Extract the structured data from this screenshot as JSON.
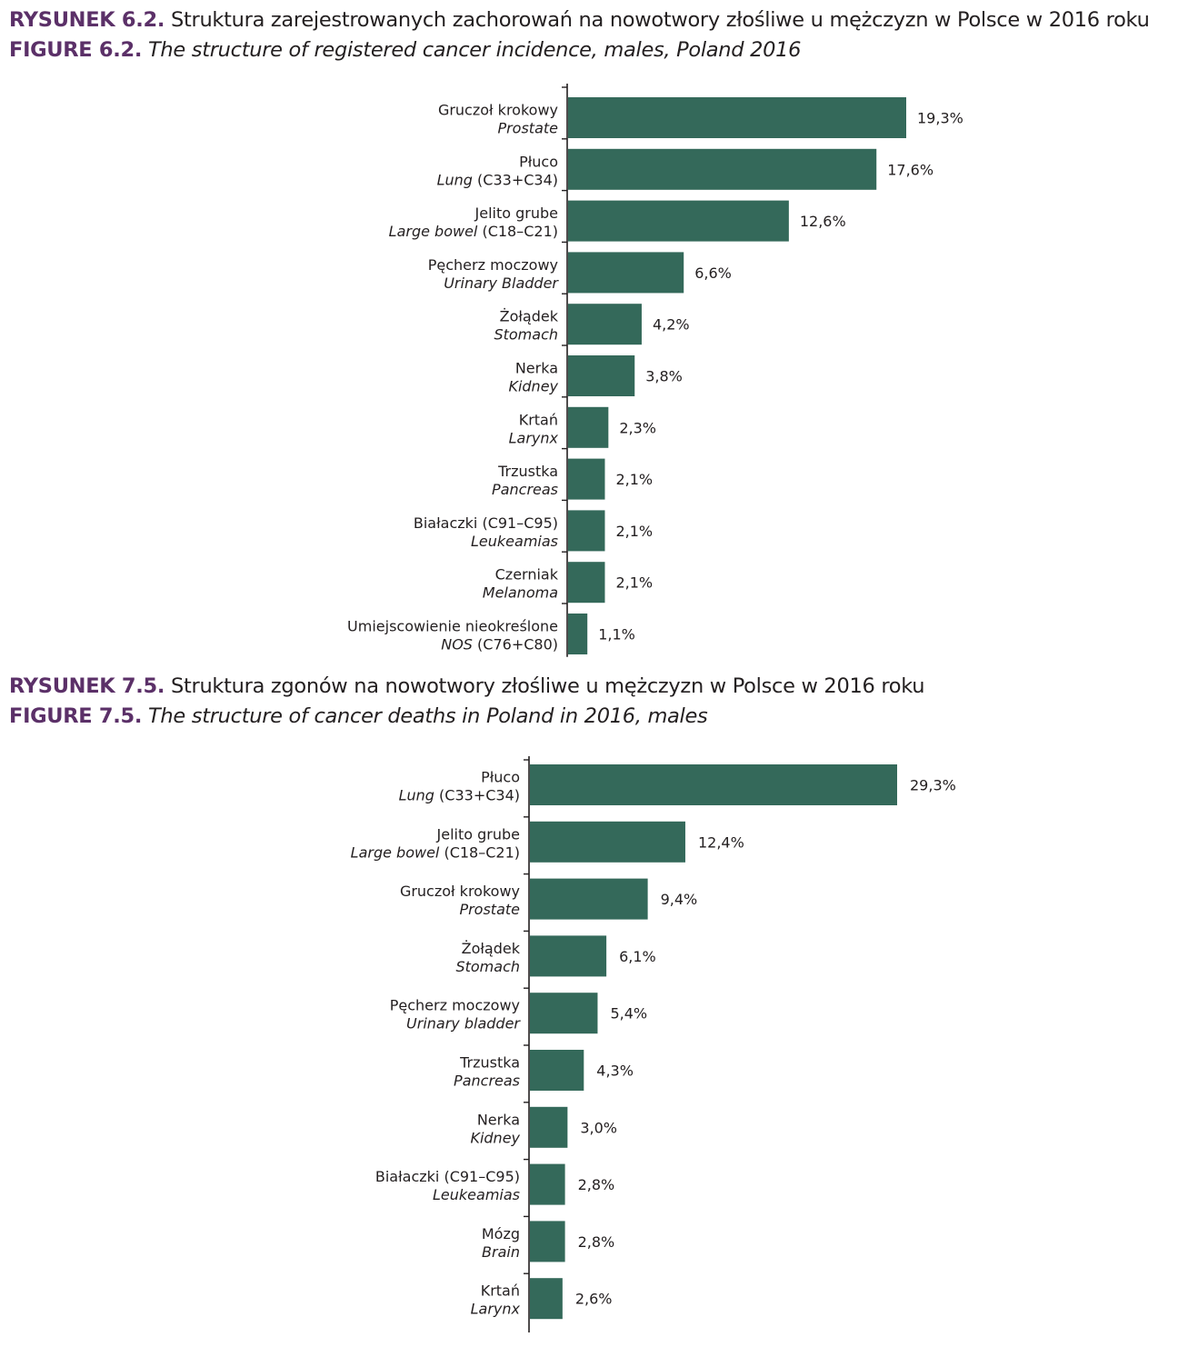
{
  "figure1": {
    "pl_number": "RYSUNEK 6.2.",
    "pl_title": "Struktura zarejestrowanych zachorowań na nowotwory złośliwe u  mężczyzn w Polsce w 2016 roku",
    "en_number": "FIGURE 6.2.",
    "en_title": "The structure of registered cancer incidence, males, Poland 2016"
  },
  "figure2": {
    "pl_number": "RYSUNEK 7.5.",
    "pl_title": "Struktura zgonów na nowotwory złośliwe u mężczyzn w Polsce w 2016 roku",
    "en_number": "FIGURE 7.5.",
    "en_title": "The structure of cancer deaths in Poland in 2016, males"
  },
  "chart_data": [
    {
      "type": "bar",
      "orientation": "horizontal",
      "bar_color": "#34695a",
      "categories": [
        {
          "pl": "Gruczoł krokowy",
          "en_italic": "Prostate",
          "en_code": ""
        },
        {
          "pl": "Płuco",
          "en_italic": "Lung",
          "en_code": " (C33+C34)"
        },
        {
          "pl": "Jelito grube",
          "en_italic": "Large bowel",
          "en_code": " (C18–C21)"
        },
        {
          "pl": "Pęcherz moczowy",
          "en_italic": "Urinary Bladder",
          "en_code": ""
        },
        {
          "pl": "Żołądek",
          "en_italic": "Stomach",
          "en_code": ""
        },
        {
          "pl": "Nerka",
          "en_italic": "Kidney",
          "en_code": ""
        },
        {
          "pl": "Krtań",
          "en_italic": "Larynx",
          "en_code": ""
        },
        {
          "pl": "Trzustka",
          "en_italic": "Pancreas",
          "en_code": ""
        },
        {
          "pl": "Białaczki (C91–C95)",
          "en_italic": "Leukeamias",
          "en_code": ""
        },
        {
          "pl": "Czerniak",
          "en_italic": "Melanoma",
          "en_code": ""
        },
        {
          "pl": "Umiejscowienie nieokreślone",
          "en_italic": "NOS",
          "en_code": " (C76+C80)"
        }
      ],
      "values": [
        19.3,
        17.6,
        12.6,
        6.6,
        4.2,
        3.8,
        2.3,
        2.1,
        2.1,
        2.1,
        1.1
      ],
      "value_labels": [
        "19,3%",
        "17,6%",
        "12,6%",
        "6,6%",
        "4,2%",
        "3,8%",
        "2,3%",
        "2,1%",
        "2,1%",
        "2,1%",
        "1,1%"
      ],
      "xlim": [
        0,
        19.3
      ],
      "grid": false,
      "legend": "none"
    },
    {
      "type": "bar",
      "orientation": "horizontal",
      "bar_color": "#34695a",
      "categories": [
        {
          "pl": "Płuco",
          "en_italic": "Lung",
          "en_code": " (C33+C34)"
        },
        {
          "pl": "Jelito grube",
          "en_italic": "Large bowel",
          "en_code": " (C18–C21)"
        },
        {
          "pl": "Gruczoł krokowy",
          "en_italic": "Prostate",
          "en_code": ""
        },
        {
          "pl": "Żołądek",
          "en_italic": "Stomach",
          "en_code": ""
        },
        {
          "pl": "Pęcherz moczowy",
          "en_italic": "Urinary bladder",
          "en_code": ""
        },
        {
          "pl": "Trzustka",
          "en_italic": "Pancreas",
          "en_code": ""
        },
        {
          "pl": "Nerka",
          "en_italic": "Kidney",
          "en_code": ""
        },
        {
          "pl": "Białaczki (C91–C95)",
          "en_italic": "Leukeamias",
          "en_code": ""
        },
        {
          "pl": "Mózg",
          "en_italic": "Brain",
          "en_code": ""
        },
        {
          "pl": "Krtań",
          "en_italic": "Larynx",
          "en_code": ""
        }
      ],
      "values": [
        29.3,
        12.4,
        9.4,
        6.1,
        5.4,
        4.3,
        3.0,
        2.8,
        2.8,
        2.6
      ],
      "value_labels": [
        "29,3%",
        "12,4%",
        "9,4%",
        "6,1%",
        "5,4%",
        "4,3%",
        "3,0%",
        "2,8%",
        "2,8%",
        "2,6%"
      ],
      "xlim": [
        0,
        29.3
      ],
      "grid": false,
      "legend": "none"
    }
  ]
}
